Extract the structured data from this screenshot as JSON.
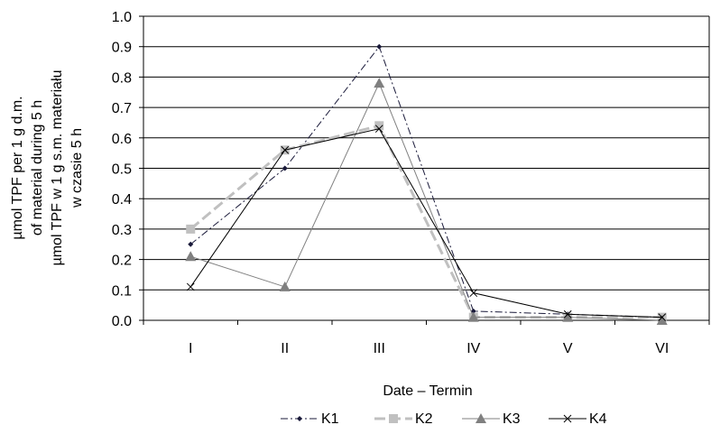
{
  "chart_data": {
    "type": "line",
    "categories": [
      "I",
      "II",
      "III",
      "IV",
      "V",
      "VI"
    ],
    "xlabel": "Date – Termin",
    "ylabel_lines": [
      "µmol TPF per 1 g d.m.",
      "of material during 5 h",
      "µmol TPF w 1 g s.m. materiału",
      "w czasie 5 h"
    ],
    "ylim": [
      0,
      1.0
    ],
    "yticks": [
      "0.0",
      "0.1",
      "0.2",
      "0.3",
      "0.4",
      "0.5",
      "0.6",
      "0.7",
      "0.8",
      "0.9",
      "1.0"
    ],
    "grid": true,
    "legend_position": "bottom",
    "series": [
      {
        "name": "K1",
        "values": [
          0.25,
          0.5,
          0.9,
          0.03,
          0.02,
          0.01
        ],
        "color": "#1a1a3a",
        "dash": "dash-dot",
        "marker": "diamond"
      },
      {
        "name": "K2",
        "values": [
          0.3,
          0.56,
          0.64,
          0.01,
          0.01,
          0.01
        ],
        "color": "#c0c0c0",
        "dash": "long-dash",
        "marker": "square"
      },
      {
        "name": "K3",
        "values": [
          0.21,
          0.11,
          0.78,
          0.01,
          0.01,
          0.0
        ],
        "color": "#808080",
        "dash": "solid",
        "marker": "triangle"
      },
      {
        "name": "K4",
        "values": [
          0.11,
          0.56,
          0.63,
          0.09,
          0.02,
          0.01
        ],
        "color": "#000000",
        "dash": "solid",
        "marker": "cross"
      }
    ]
  }
}
